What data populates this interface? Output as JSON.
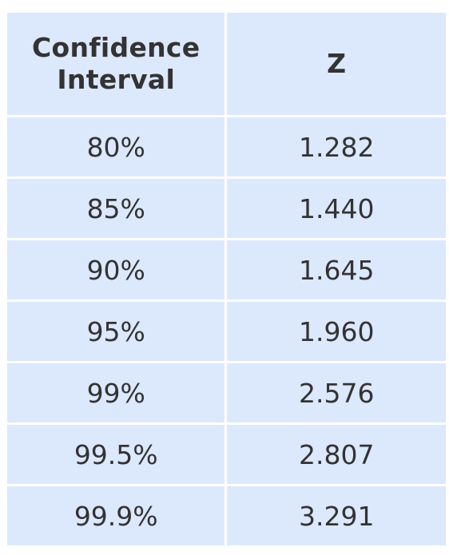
{
  "table": {
    "headers": [
      "Confidence Interval",
      "Z"
    ],
    "header_lines": [
      [
        "Confidence",
        "Interval"
      ],
      [
        "Z"
      ]
    ],
    "rows": [
      [
        "80%",
        "1.282"
      ],
      [
        "85%",
        "1.440"
      ],
      [
        "90%",
        "1.645"
      ],
      [
        "95%",
        "1.960"
      ],
      [
        "99%",
        "2.576"
      ],
      [
        "99.5%",
        "2.807"
      ],
      [
        "99.9%",
        "3.291"
      ]
    ]
  },
  "colors": {
    "cell_background": "#dce8fc",
    "text": "#333333",
    "border": "#ffffff"
  }
}
